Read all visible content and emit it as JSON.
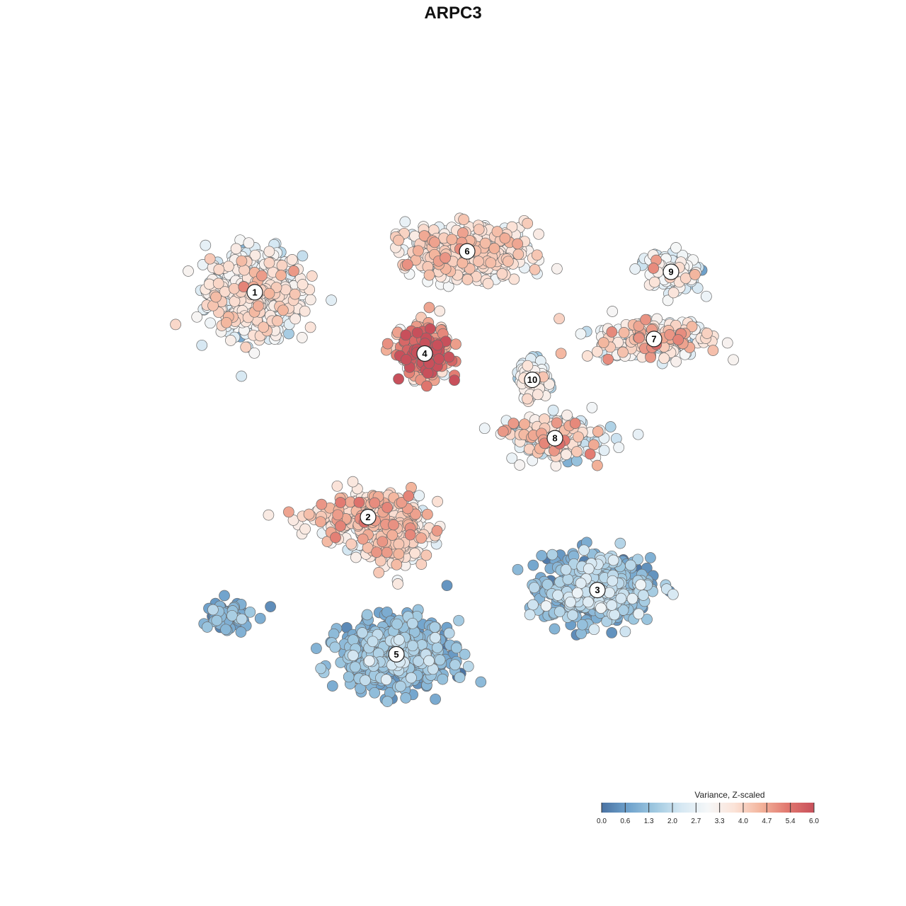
{
  "chart_data": {
    "type": "scatter",
    "title": "ARPC3",
    "xlabel": "",
    "ylabel": "",
    "grid": false,
    "colorbar": {
      "title": "Variance, Z-scaled",
      "ticks": [
        "0.0",
        "0.6",
        "1.3",
        "2.0",
        "2.7",
        "3.3",
        "4.0",
        "4.7",
        "5.4",
        "6.0"
      ],
      "range": [
        0,
        6
      ],
      "colors": [
        "#4a73a3",
        "#6fa2cc",
        "#9fc8e0",
        "#d6e8f3",
        "#f5f7f8",
        "#fbe3d8",
        "#f3b49c",
        "#e1786f",
        "#c8505b"
      ],
      "placement": "bottom-right"
    },
    "clusters": [
      {
        "label": "1",
        "x": -7.0,
        "y": 4.9
      },
      {
        "label": "2",
        "x": -3.0,
        "y": -2.8
      },
      {
        "label": "3",
        "x": 5.1,
        "y": -5.3
      },
      {
        "label": "4",
        "x": -1.0,
        "y": 2.8
      },
      {
        "label": "5",
        "x": -2.0,
        "y": -7.5
      },
      {
        "label": "6",
        "x": 0.5,
        "y": 6.3
      },
      {
        "label": "7",
        "x": 7.1,
        "y": 3.3
      },
      {
        "label": "8",
        "x": 3.6,
        "y": -0.1
      },
      {
        "label": "9",
        "x": 7.7,
        "y": 5.6
      },
      {
        "label": "10",
        "x": 2.8,
        "y": 1.9
      }
    ],
    "cluster_spread": [
      {
        "label": "1",
        "sx": 1.5,
        "sy": 1.3,
        "n": 600,
        "mean_value": 2.9,
        "sd_value": 0.7
      },
      {
        "label": "2",
        "sx": 1.7,
        "sy": 0.8,
        "n": 260,
        "mean_value": 3.8,
        "sd_value": 0.6
      },
      {
        "label": "3",
        "sx": 1.7,
        "sy": 1.0,
        "n": 520,
        "mean_value": 1.2,
        "sd_value": 0.6
      },
      {
        "label": "4",
        "sx": 0.8,
        "sy": 0.8,
        "n": 260,
        "mean_value": 4.6,
        "sd_value": 1.1
      },
      {
        "label": "5",
        "sx": 1.7,
        "sy": 1.0,
        "n": 620,
        "mean_value": 1.0,
        "sd_value": 0.5
      },
      {
        "label": "6",
        "sx": 1.9,
        "sy": 0.8,
        "n": 460,
        "mean_value": 3.4,
        "sd_value": 0.6
      },
      {
        "label": "7",
        "sx": 1.8,
        "sy": 0.6,
        "n": 260,
        "mean_value": 3.3,
        "sd_value": 0.8
      },
      {
        "label": "8",
        "sx": 1.5,
        "sy": 0.7,
        "n": 180,
        "mean_value": 3.0,
        "sd_value": 1.0
      },
      {
        "label": "9",
        "sx": 1.0,
        "sy": 0.6,
        "n": 120,
        "mean_value": 2.5,
        "sd_value": 0.7
      },
      {
        "label": "10",
        "sx": 0.5,
        "sy": 0.6,
        "n": 90,
        "mean_value": 2.8,
        "sd_value": 0.6
      },
      {
        "label": "",
        "sx": 1.0,
        "sy": 1.0,
        "n": 240,
        "mean_value": 3.4,
        "sd_value": 0.6,
        "x": -2.0,
        "y": -3.4
      },
      {
        "label": "",
        "sx": 0.8,
        "sy": 0.5,
        "n": 60,
        "mean_value": 0.8,
        "sd_value": 0.4,
        "x": -7.9,
        "y": -6.2
      }
    ],
    "xlim": [
      -12,
      12
    ],
    "ylim": [
      -12,
      12
    ]
  }
}
